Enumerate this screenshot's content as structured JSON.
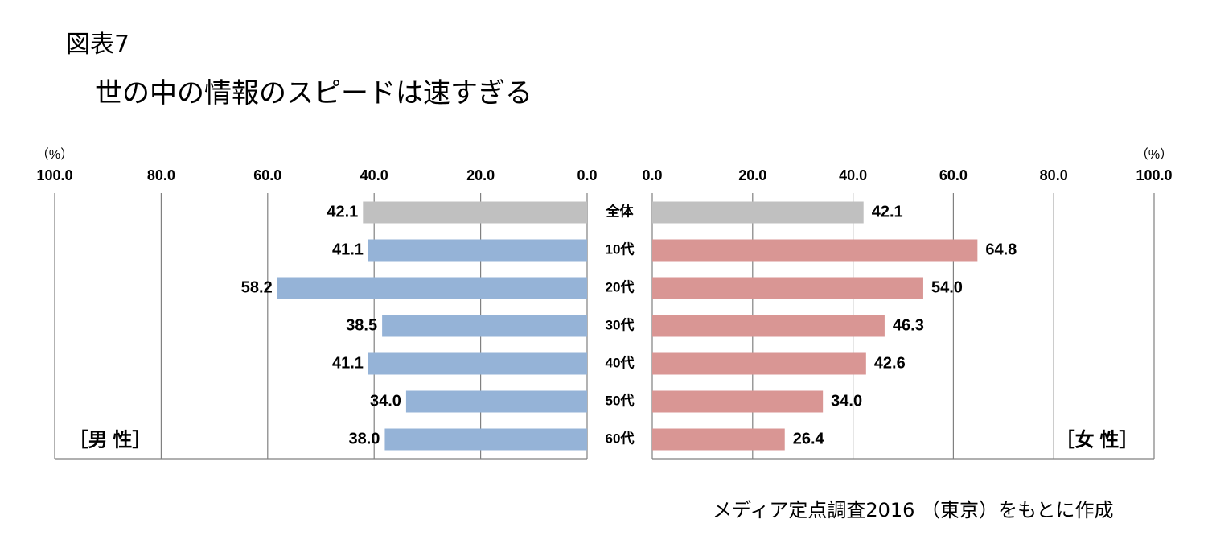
{
  "figure": {
    "label": "図表7",
    "title": "世の中の情報のスピードは速すぎる",
    "source": "メディア定点調査2016 （東京）をもとに作成"
  },
  "chart_data": {
    "type": "bar",
    "orientation": "horizontal-butterfly",
    "categories": [
      "全体",
      "10代",
      "20代",
      "30代",
      "40代",
      "50代",
      "60代"
    ],
    "series": [
      {
        "name": "男性",
        "label": "［男 性］",
        "side": "left",
        "values": [
          42.1,
          41.1,
          58.2,
          38.5,
          41.1,
          34.0,
          38.0
        ],
        "value_labels": [
          "42.1",
          "41.1",
          "58.2",
          "38.5",
          "41.1",
          "34.0",
          "38.0"
        ]
      },
      {
        "name": "女性",
        "label": "［女 性］",
        "side": "right",
        "values": [
          42.1,
          64.8,
          54.0,
          46.3,
          42.6,
          34.0,
          26.4
        ],
        "value_labels": [
          "42.1",
          "64.8",
          "54.0",
          "46.3",
          "42.6",
          "34.0",
          "26.4"
        ]
      }
    ],
    "xlim": [
      0,
      100
    ],
    "ticks": [
      0,
      20,
      40,
      60,
      80,
      100
    ],
    "tick_labels": [
      "0.0",
      "20.0",
      "40.0",
      "60.0",
      "80.0",
      "100.0"
    ],
    "unit_label": "（%）",
    "colors": {
      "total": "#c0c0c0",
      "male": "#95b3d7",
      "female": "#d99694",
      "grid": "#808080"
    },
    "grid": true
  }
}
